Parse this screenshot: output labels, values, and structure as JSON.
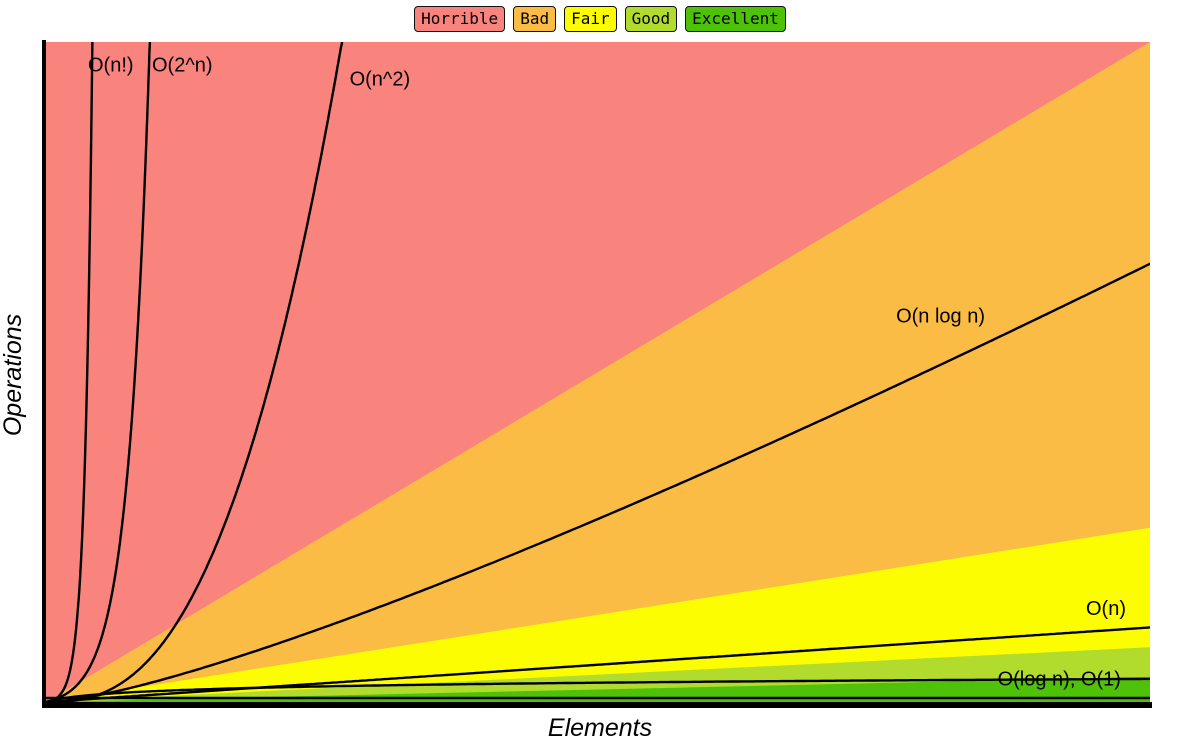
{
  "legend": {
    "position": "top-center",
    "items": [
      {
        "id": "horrible",
        "label": "Horrible",
        "color": "#F9837D"
      },
      {
        "id": "bad",
        "label": "Bad",
        "color": "#FBBC45"
      },
      {
        "id": "fair",
        "label": "Fair",
        "color": "#FCFE00"
      },
      {
        "id": "good",
        "label": "Good",
        "color": "#B2DC2D"
      },
      {
        "id": "excellent",
        "label": "Excellent",
        "color": "#4EC208"
      }
    ]
  },
  "axes": {
    "x_label": "Elements",
    "y_label": "Operations"
  },
  "chart_data": {
    "type": "line",
    "xlabel": "Elements",
    "ylabel": "Operations",
    "grid": false,
    "ticks": "none",
    "legend_position": "top-center",
    "regions": [
      {
        "label": "Horrible",
        "color": "#F9837D",
        "y_exit": null
      },
      {
        "label": "Bad",
        "color": "#FBBC45",
        "y_exit": 1.0
      },
      {
        "label": "Fair",
        "color": "#FCFE00",
        "y_exit": 0.264
      },
      {
        "label": "Good",
        "color": "#B2DC2D",
        "y_exit": 0.083
      },
      {
        "label": "Excellent",
        "color": "#4EC208",
        "y_exit": 0.038
      }
    ],
    "curves": [
      {
        "id": "n-factorial",
        "label": "O(n!)",
        "shape": "factorial",
        "x_exit": 0.042,
        "label_pos": [
          0.038,
          0.045
        ]
      },
      {
        "id": "2-pow-n",
        "label": "O(2^n)",
        "shape": "exponential",
        "x_exit": 0.094,
        "label_pos": [
          0.096,
          0.045
        ]
      },
      {
        "id": "n-squared",
        "label": "O(n^2)",
        "shape": "power",
        "x_exit": 0.268,
        "label_pos": [
          0.275,
          0.066
        ]
      },
      {
        "id": "n-log-n",
        "label": "O(n log n)",
        "shape": "linearithmic",
        "y_exit": 0.664,
        "label_pos": [
          0.77,
          0.425
        ]
      },
      {
        "id": "n",
        "label": "O(n)",
        "shape": "linear",
        "y_exit": 0.113,
        "label_pos": [
          0.942,
          0.868
        ]
      },
      {
        "id": "log-n",
        "label": "O(log n), O(1)",
        "shape": "log",
        "y_exit": 0.035,
        "label_pos": [
          0.862,
          0.975
        ]
      },
      {
        "id": "constant",
        "label": "",
        "shape": "const",
        "y_exit": 0.006,
        "label_pos": null
      }
    ]
  }
}
